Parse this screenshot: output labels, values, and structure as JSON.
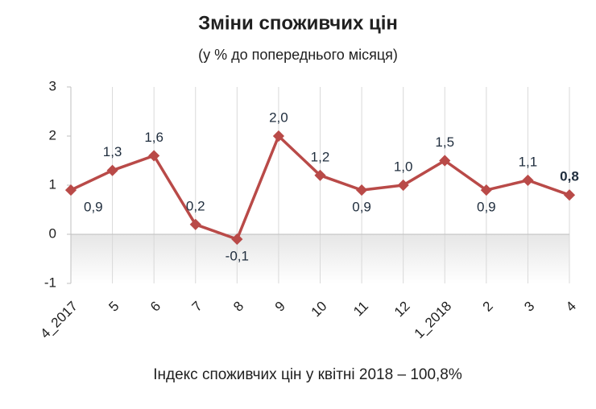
{
  "chart_data": {
    "type": "line",
    "title": "Зміни споживчих цін",
    "subtitle": "(у % до попереднього місяця)",
    "annotation": "Індекс споживчих цін у квітні 2018 – 100,8%",
    "categories": [
      "4_2017",
      "5",
      "6",
      "7",
      "8",
      "9",
      "10",
      "11",
      "12",
      "1_2018",
      "2",
      "3",
      "4"
    ],
    "series": [
      {
        "name": "Зміни споживчих цін",
        "color": "#b94a48",
        "values": [
          0.9,
          1.3,
          1.6,
          0.2,
          -0.1,
          2.0,
          1.2,
          0.9,
          1.0,
          1.5,
          0.9,
          1.1,
          0.8
        ],
        "value_labels": [
          "0,9",
          "1,3",
          "1,6",
          "0,2",
          "-0,1",
          "2,0",
          "1,2",
          "0,9",
          "1,0",
          "1,5",
          "0,9",
          "1,1",
          "0,8"
        ]
      }
    ],
    "ylim": [
      -1,
      3
    ],
    "yticks": [
      -1,
      0,
      1,
      2,
      3
    ],
    "grid": true
  }
}
